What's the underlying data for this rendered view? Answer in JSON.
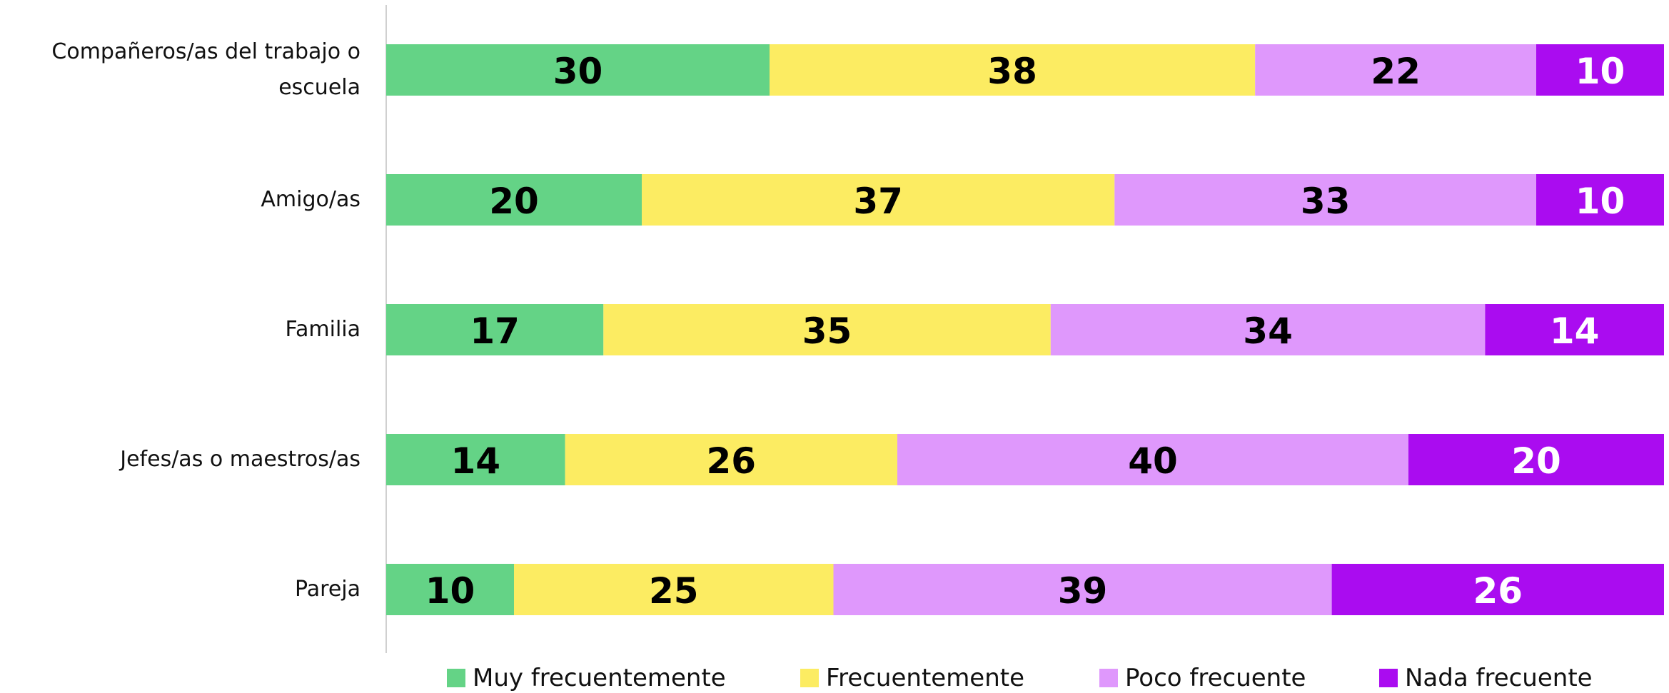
{
  "chart_data": {
    "type": "stacked-barh",
    "categories": [
      "Compañeros/as del trabajo o escuela",
      "Amigo/as",
      "Familia",
      "Jefes/as o maestros/as",
      "Pareja"
    ],
    "series": [
      {
        "name": "Muy frecuentemente",
        "color": "#64d386",
        "label_color": "#000000",
        "values": [
          30,
          20,
          17,
          14,
          10
        ]
      },
      {
        "name": "Frecuentemente",
        "color": "#fcec62",
        "label_color": "#000000",
        "values": [
          38,
          37,
          35,
          26,
          25
        ]
      },
      {
        "name": "Poco frecuente",
        "color": "#df98fc",
        "label_color": "#000000",
        "values": [
          22,
          33,
          34,
          40,
          39
        ]
      },
      {
        "name": "Nada frecuente",
        "color": "#aa0cf0",
        "label_color": "#ffffff",
        "values": [
          10,
          10,
          14,
          20,
          26
        ]
      }
    ],
    "xlim": [
      0,
      100
    ],
    "legend": "bottom"
  }
}
